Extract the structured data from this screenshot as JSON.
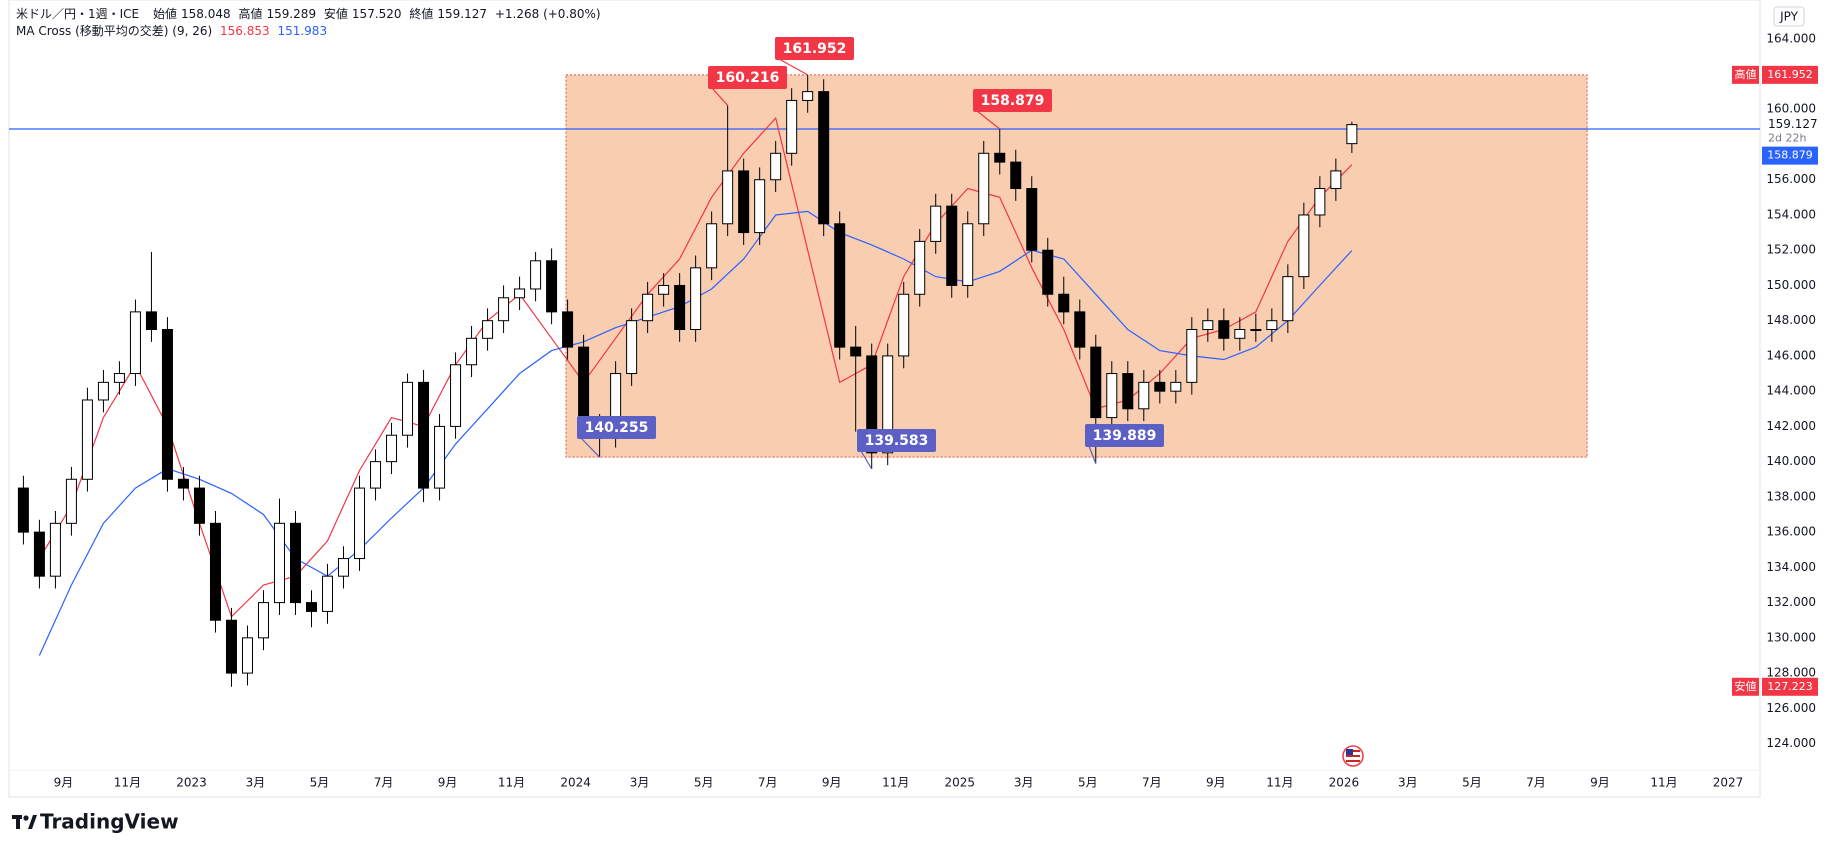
{
  "chart_data": {
    "type": "candlestick",
    "title": "米ドル／円・1週・ICE",
    "ohlc_labels": [
      "始値",
      "高値",
      "安値",
      "終値"
    ],
    "ohlc_value_labels": [
      "158.048",
      "159.289",
      "157.520",
      "159.127"
    ],
    "change": "+1.268 (+0.80%)",
    "indicator": "MA Cross (移動平均の交差) (9, 26)",
    "currency": "JPY",
    "countdown": "2d 22h",
    "branding": "TradingView",
    "up_color": "#ffffff",
    "down_color": "#000000",
    "hline_color": "#2962ff",
    "label_colors": {
      "high": "#f23645",
      "low": "#5c5fc4"
    },
    "range_box": {
      "x": [
        23.7,
        55.6
      ],
      "fill": "#f7c4a2",
      "stroke": "#e0554a"
    },
    "xlim": [
      6.3,
      61.0
    ],
    "ylim": [
      122.5,
      166.2
    ],
    "xticks": [
      {
        "value": 8,
        "label": "9月"
      },
      {
        "value": 10,
        "label": "11月"
      },
      {
        "value": 12,
        "label": "2023"
      },
      {
        "value": 14,
        "label": "3月"
      },
      {
        "value": 16,
        "label": "5月"
      },
      {
        "value": 18,
        "label": "7月"
      },
      {
        "value": 20,
        "label": "9月"
      },
      {
        "value": 22,
        "label": "11月"
      },
      {
        "value": 24,
        "label": "2024"
      },
      {
        "value": 26,
        "label": "3月"
      },
      {
        "value": 28,
        "label": "5月"
      },
      {
        "value": 30,
        "label": "7月"
      },
      {
        "value": 32,
        "label": "9月"
      },
      {
        "value": 34,
        "label": "11月"
      },
      {
        "value": 36,
        "label": "2025"
      },
      {
        "value": 38,
        "label": "3月"
      },
      {
        "value": 40,
        "label": "5月"
      },
      {
        "value": 42,
        "label": "7月"
      },
      {
        "value": 44,
        "label": "9月"
      },
      {
        "value": 46,
        "label": "11月"
      },
      {
        "value": 48,
        "label": "2026"
      },
      {
        "value": 50,
        "label": "3月"
      },
      {
        "value": 52,
        "label": "5月"
      },
      {
        "value": 54,
        "label": "7月"
      },
      {
        "value": 56,
        "label": "9月"
      },
      {
        "value": 58,
        "label": "11月"
      },
      {
        "value": 60,
        "label": "2027"
      }
    ],
    "yticks": [
      {
        "value": 124,
        "label": "124.000"
      },
      {
        "value": 126,
        "label": "126.000"
      },
      {
        "value": 128,
        "label": "128.000"
      },
      {
        "value": 130,
        "label": "130.000"
      },
      {
        "value": 132,
        "label": "132.000"
      },
      {
        "value": 134,
        "label": "134.000"
      },
      {
        "value": 136,
        "label": "136.000"
      },
      {
        "value": 138,
        "label": "138.000"
      },
      {
        "value": 140,
        "label": "140.000"
      },
      {
        "value": 142,
        "label": "142.000"
      },
      {
        "value": 144,
        "label": "144.000"
      },
      {
        "value": 146,
        "label": "146.000"
      },
      {
        "value": 148,
        "label": "148.000"
      },
      {
        "value": 150,
        "label": "150.000"
      },
      {
        "value": 152,
        "label": "152.000"
      },
      {
        "value": 154,
        "label": "154.000"
      },
      {
        "value": 156,
        "label": "156.000"
      },
      {
        "value": 160,
        "label": "160.000"
      },
      {
        "value": 164,
        "label": "164.000"
      }
    ],
    "x": [
      6.75,
      7.25,
      7.75,
      8.25,
      8.75,
      9.25,
      9.75,
      10.25,
      10.75,
      11.25,
      11.75,
      12.25,
      12.75,
      13.25,
      13.75,
      14.25,
      14.75,
      15.25,
      15.75,
      16.25,
      16.75,
      17.25,
      17.75,
      18.25,
      18.75,
      19.25,
      19.75,
      20.25,
      20.75,
      21.25,
      21.75,
      22.25,
      22.75,
      23.25,
      23.75,
      24.25,
      24.75,
      25.25,
      25.75,
      26.25,
      26.75,
      27.25,
      27.75,
      28.25,
      28.75,
      29.25,
      29.75,
      30.25,
      30.75,
      31.25,
      31.75,
      32.25,
      32.75,
      33.25,
      33.75,
      34.25,
      34.75,
      35.25,
      35.75,
      36.25,
      36.75,
      37.25,
      37.75,
      38.25,
      38.75,
      39.25,
      39.75,
      40.25,
      40.75,
      41.25,
      41.75,
      42.25,
      42.75,
      43.25,
      43.75,
      44.25,
      44.75,
      45.25,
      45.75,
      46.25,
      46.75,
      47.25,
      47.75,
      48.25
    ],
    "open": [
      138.5,
      136.0,
      133.5,
      136.5,
      139.0,
      143.5,
      144.5,
      145.0,
      148.5,
      147.5,
      139.0,
      138.5,
      136.5,
      131.0,
      128.0,
      130.0,
      132.0,
      136.5,
      132.0,
      131.5,
      133.5,
      134.5,
      138.5,
      140.0,
      141.5,
      144.5,
      138.5,
      142.0,
      145.5,
      147.0,
      148.0,
      149.3,
      149.8,
      151.4,
      148.5,
      146.5,
      142.0,
      141.5,
      145.0,
      148.0,
      149.5,
      150.0,
      147.5,
      151.0,
      153.5,
      156.5,
      153.0,
      156.0,
      157.5,
      160.5,
      161.0,
      153.5,
      146.5,
      146.0,
      140.5,
      146.0,
      149.5,
      152.5,
      154.5,
      150.0,
      153.5,
      157.5,
      157.0,
      155.5,
      152.0,
      149.5,
      148.5,
      146.5,
      142.5,
      145.0,
      143.0,
      144.5,
      144.0,
      144.5,
      147.5,
      148.0,
      147.0,
      147.5,
      147.5,
      148.0,
      150.5,
      154.0,
      155.5,
      158.048
    ],
    "high": [
      139.2,
      136.7,
      137.2,
      139.7,
      144.2,
      145.2,
      145.7,
      149.2,
      151.9,
      148.2,
      139.7,
      139.2,
      137.2,
      131.7,
      130.7,
      132.7,
      137.9,
      137.2,
      132.7,
      134.2,
      135.2,
      139.2,
      140.7,
      142.2,
      145.0,
      145.2,
      142.7,
      146.2,
      147.7,
      148.7,
      150.0,
      150.5,
      151.9,
      152.1,
      149.2,
      147.2,
      142.7,
      145.7,
      148.7,
      150.2,
      150.7,
      150.7,
      151.7,
      154.2,
      160.216,
      157.2,
      156.7,
      158.2,
      161.2,
      161.952,
      161.7,
      154.2,
      147.7,
      146.7,
      146.7,
      150.2,
      153.2,
      155.2,
      155.2,
      154.2,
      158.2,
      158.879,
      157.7,
      156.2,
      152.7,
      150.5,
      149.2,
      147.2,
      145.7,
      145.7,
      145.2,
      145.2,
      145.2,
      148.2,
      148.7,
      148.7,
      148.2,
      148.4,
      148.7,
      151.2,
      154.7,
      156.2,
      157.2,
      159.289
    ],
    "low": [
      135.3,
      132.8,
      132.8,
      135.8,
      138.3,
      142.8,
      143.8,
      144.3,
      146.8,
      138.3,
      137.8,
      135.8,
      130.3,
      127.223,
      127.3,
      129.3,
      131.3,
      131.3,
      130.6,
      130.8,
      132.8,
      133.8,
      137.8,
      139.3,
      140.8,
      137.7,
      137.8,
      141.3,
      144.8,
      146.3,
      147.3,
      148.6,
      149.1,
      147.8,
      145.8,
      141.3,
      140.255,
      140.8,
      144.3,
      147.3,
      148.8,
      146.8,
      146.8,
      150.3,
      152.8,
      152.3,
      152.3,
      155.3,
      156.8,
      159.8,
      152.8,
      145.8,
      141.7,
      139.583,
      139.8,
      145.3,
      148.8,
      151.8,
      149.3,
      149.3,
      152.8,
      156.3,
      154.8,
      151.3,
      148.8,
      147.8,
      145.8,
      139.889,
      141.8,
      142.3,
      142.3,
      143.3,
      143.3,
      143.8,
      146.8,
      146.3,
      146.3,
      146.8,
      146.8,
      147.3,
      149.8,
      153.3,
      154.8,
      157.52
    ],
    "close": [
      136.0,
      133.5,
      136.5,
      139.0,
      143.5,
      144.5,
      145.0,
      148.5,
      147.5,
      139.0,
      138.5,
      136.5,
      131.0,
      128.0,
      130.0,
      132.0,
      136.5,
      132.0,
      131.5,
      133.5,
      134.5,
      138.5,
      140.0,
      141.5,
      144.5,
      138.5,
      142.0,
      145.5,
      147.0,
      148.0,
      149.3,
      149.8,
      151.4,
      148.5,
      146.5,
      142.0,
      141.5,
      145.0,
      148.0,
      149.5,
      150.0,
      147.5,
      151.0,
      153.5,
      156.5,
      153.0,
      156.0,
      157.5,
      160.5,
      161.0,
      153.5,
      146.5,
      146.0,
      140.5,
      146.0,
      149.5,
      152.5,
      154.5,
      150.0,
      153.5,
      157.5,
      157.0,
      155.5,
      152.0,
      149.5,
      148.5,
      146.5,
      142.5,
      145.0,
      143.0,
      144.5,
      144.0,
      144.5,
      147.5,
      148.0,
      147.0,
      147.5,
      147.5,
      148.0,
      150.5,
      154.0,
      155.5,
      156.5,
      159.127
    ],
    "ma_x": [
      7.25,
      8.25,
      9.25,
      10.25,
      11.25,
      12.25,
      13.25,
      14.25,
      15.25,
      16.25,
      17.25,
      18.25,
      19.25,
      20.25,
      21.25,
      22.25,
      23.25,
      24.25,
      25.25,
      26.25,
      27.25,
      28.25,
      29.25,
      30.25,
      31.25,
      32.25,
      33.25,
      34.25,
      35.25,
      36.25,
      37.25,
      38.25,
      39.25,
      40.25,
      41.25,
      42.25,
      43.25,
      44.25,
      45.25,
      46.25,
      47.25,
      48.25
    ],
    "ma_series": [
      {
        "color": "#f23645",
        "values": [
          134.5,
          137.5,
          142.5,
          145.5,
          142.0,
          136.5,
          131.2,
          133.0,
          133.5,
          135.5,
          139.5,
          142.5,
          142.0,
          145.5,
          148.0,
          149.5,
          147.0,
          144.5,
          147.0,
          149.5,
          151.5,
          155.0,
          157.5,
          159.5,
          152.0,
          144.5,
          145.5,
          150.5,
          153.5,
          155.5,
          155.0,
          151.0,
          147.5,
          143.0,
          143.5,
          145.0,
          147.0,
          147.5,
          148.5,
          152.5,
          155.0,
          156.853
        ]
      },
      {
        "color": "#2962ff",
        "values": [
          129.0,
          133.0,
          136.5,
          138.5,
          139.6,
          139.0,
          138.2,
          137.0,
          134.5,
          133.5,
          135.0,
          136.8,
          138.5,
          141.0,
          143.0,
          145.0,
          146.3,
          146.8,
          147.6,
          148.2,
          148.8,
          149.8,
          151.5,
          154.0,
          154.2,
          153.0,
          152.3,
          151.5,
          150.5,
          150.2,
          150.8,
          152.0,
          151.5,
          149.5,
          147.5,
          146.3,
          146.0,
          145.8,
          146.5,
          148.0,
          150.0,
          151.983
        ]
      }
    ]
  }
}
